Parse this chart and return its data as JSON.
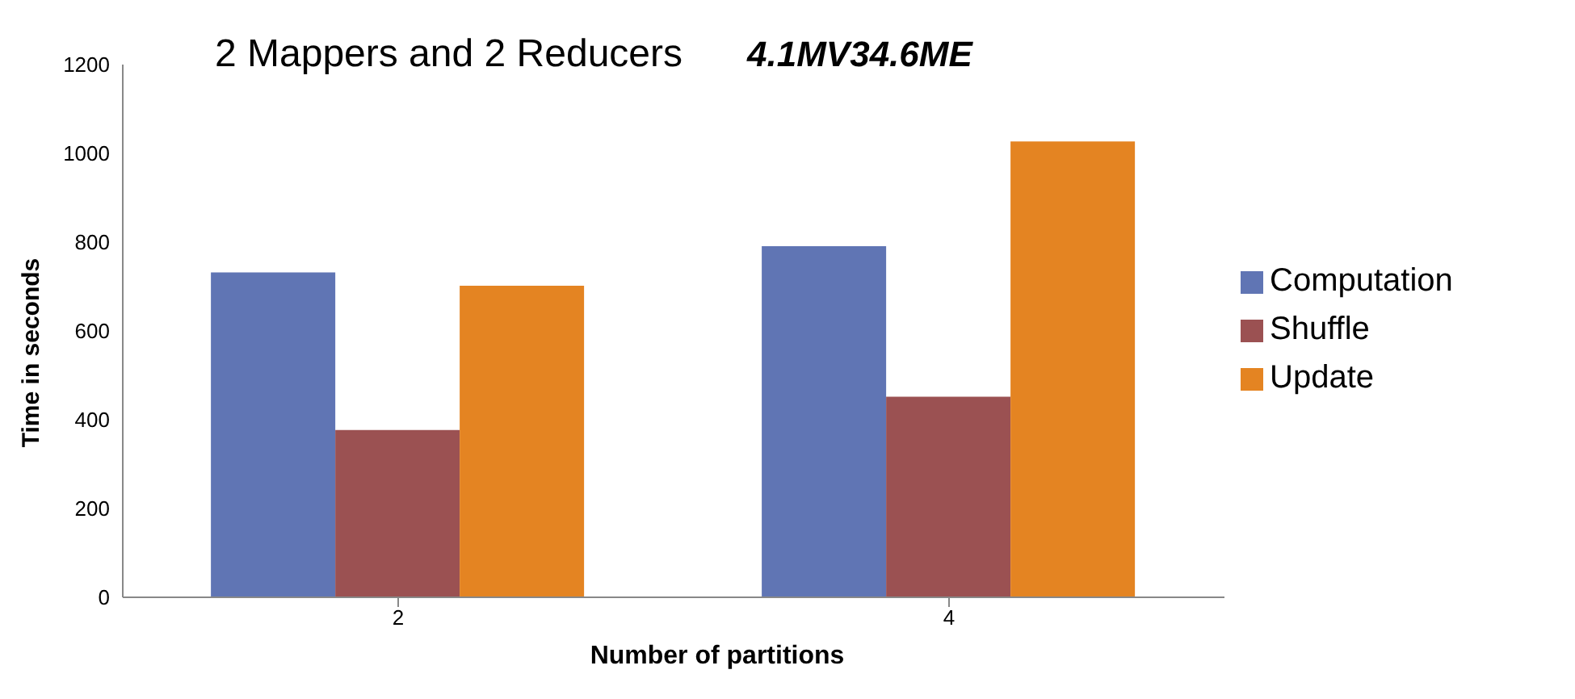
{
  "chart_data": {
    "type": "bar",
    "title": "2 Mappers and 2 Reducers",
    "subtitle": "4.1MV34.6ME",
    "xlabel": "Number of partitions",
    "ylabel": "Time in seconds",
    "categories": [
      "2",
      "4"
    ],
    "series": [
      {
        "name": "Computation",
        "color": "#6075b4",
        "values": [
          732,
          791
        ]
      },
      {
        "name": "Shuffle",
        "color": "#9b5152",
        "values": [
          377,
          452
        ]
      },
      {
        "name": "Update",
        "color": "#e48422",
        "values": [
          702,
          1027
        ]
      }
    ],
    "ylim": [
      0,
      1200
    ],
    "yticks": [
      0,
      200,
      400,
      600,
      800,
      1000,
      1200
    ],
    "grid": false,
    "legend": "right"
  }
}
